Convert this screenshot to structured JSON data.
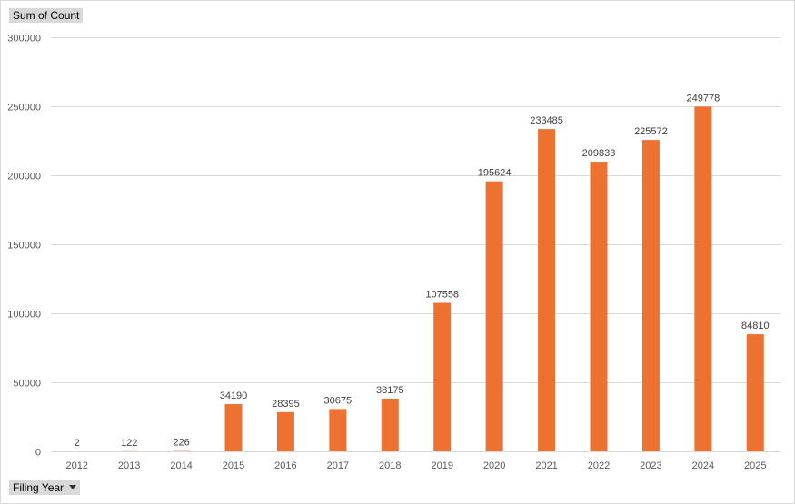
{
  "field_buttons": {
    "values": "Sum of Count",
    "axis": "Filing Year"
  },
  "colors": {
    "bar": "#ED7232",
    "gridline": "#d9d9d9",
    "axis_text": "#595959",
    "field_button_bg": "#d9d9d9"
  },
  "chart_data": {
    "type": "bar",
    "categories": [
      "2012",
      "2013",
      "2014",
      "2015",
      "2016",
      "2017",
      "2018",
      "2019",
      "2020",
      "2021",
      "2022",
      "2023",
      "2024",
      "2025"
    ],
    "values": [
      2,
      122,
      226,
      34190,
      28395,
      30675,
      38175,
      107558,
      195624,
      233485,
      209833,
      225572,
      249778,
      84810
    ],
    "ylim": [
      0,
      300000
    ],
    "yticks": [
      0,
      50000,
      100000,
      150000,
      200000,
      250000,
      300000
    ],
    "grid": true,
    "legend": "none",
    "data_labels": true
  }
}
